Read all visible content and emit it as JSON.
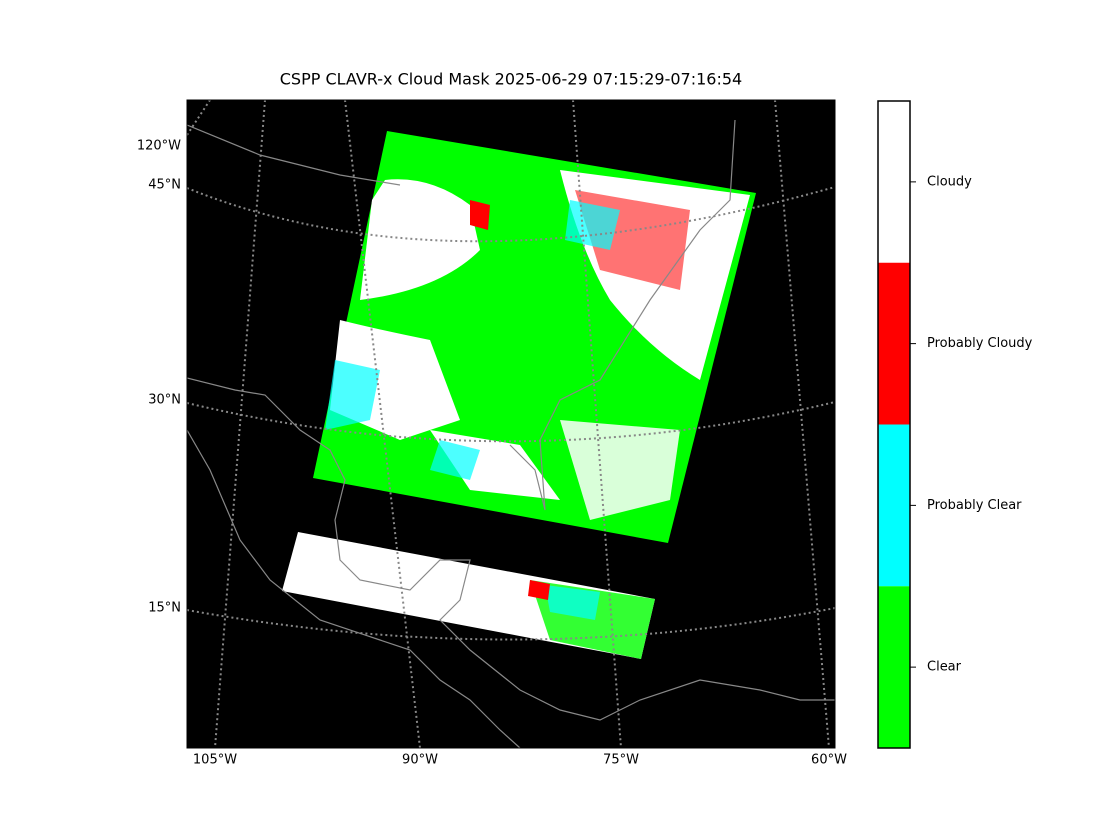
{
  "title": "CSPP CLAVR-x Cloud Mask 2025-06-29 07:15:29-07:16:54",
  "longitude_labels": [
    "105°W",
    "90°W",
    "75°W",
    "60°W"
  ],
  "latitude_labels": [
    "120°W",
    "45°N",
    "30°N",
    "15°N"
  ],
  "legend": {
    "items": [
      {
        "label": "Cloudy",
        "color": "#ffffff"
      },
      {
        "label": "Probably Cloudy",
        "color": "#ff0000"
      },
      {
        "label": "Probably Clear",
        "color": "#00ffff"
      },
      {
        "label": "Clear",
        "color": "#00ff00"
      }
    ]
  }
}
